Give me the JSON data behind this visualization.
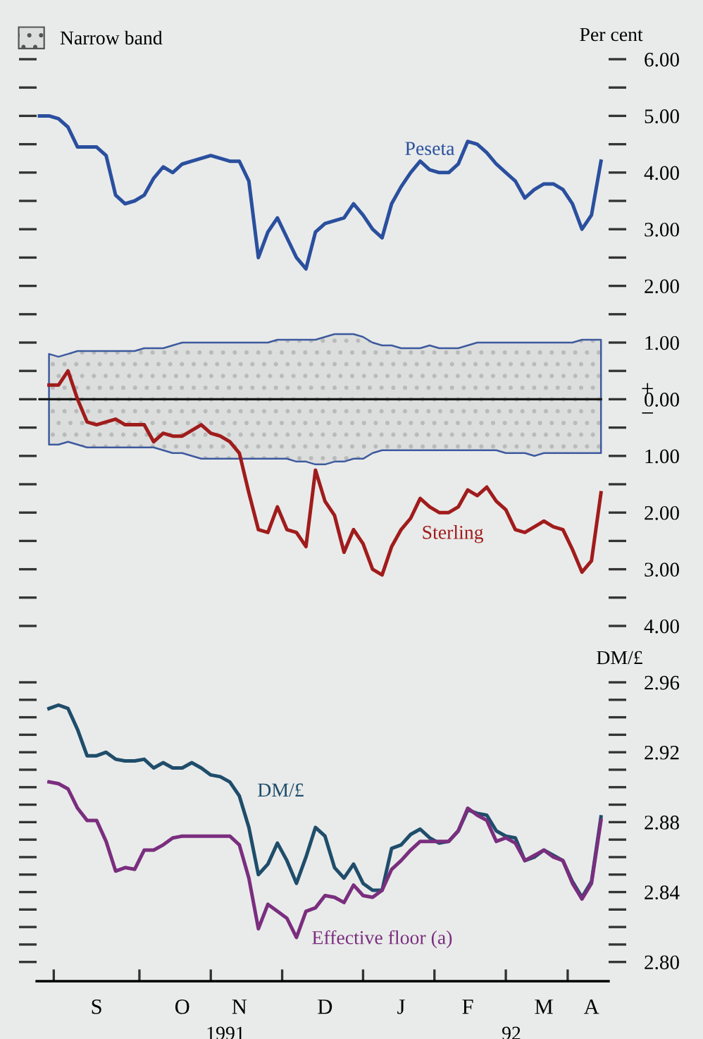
{
  "chart_data": [
    {
      "type": "line",
      "ylabel": "Per cent",
      "legend": "top left",
      "tick_labels": "y",
      "categories": [
        null,
        null,
        null,
        null,
        null,
        null,
        null,
        null,
        null,
        null,
        null,
        null,
        null,
        null,
        null,
        null,
        null,
        null,
        null,
        null,
        null,
        null,
        null,
        null,
        null,
        null,
        null,
        null,
        null,
        null,
        null,
        null,
        null,
        null,
        null,
        null,
        null,
        null,
        null,
        null,
        null,
        null,
        null,
        null,
        null,
        null,
        null,
        null,
        null,
        null,
        null,
        null,
        null,
        null,
        null,
        null,
        null,
        null,
        null,
        null
      ],
      "ylim": [
        -4,
        6
      ],
      "yticks": [
        {
          "value": 6,
          "label": "6.00"
        },
        {
          "value": 5.5,
          "label": null
        },
        {
          "value": 5,
          "label": "5.00"
        },
        {
          "value": 4.5,
          "label": null
        },
        {
          "value": 4,
          "label": "4.00"
        },
        {
          "value": 3.5,
          "label": null
        },
        {
          "value": 3,
          "label": "3.00"
        },
        {
          "value": 2.5,
          "label": null
        },
        {
          "value": 2,
          "label": "2.00"
        },
        {
          "value": 1.5,
          "label": null
        },
        {
          "value": 1,
          "label": "1.00"
        },
        {
          "value": 0.5,
          "label": null
        },
        {
          "value": 0,
          "label": "0.00"
        },
        {
          "value": -0.5,
          "label": null
        },
        {
          "value": -1,
          "label": "1.00"
        },
        {
          "value": -1.5,
          "label": null
        },
        {
          "value": -2,
          "label": "2.00"
        },
        {
          "value": -2.5,
          "label": null
        },
        {
          "value": -3,
          "label": "3.00"
        },
        {
          "value": -3.5,
          "label": null
        },
        {
          "value": -4,
          "label": "4.00"
        }
      ],
      "annotations": [
        "+",
        "−"
      ],
      "series": [
        {
          "name": "Narrow band",
          "color": "#1a1a1a",
          "values": [
            0,
            0,
            0,
            0,
            0,
            0,
            0,
            0,
            0,
            0,
            0,
            0,
            0,
            0,
            0,
            0,
            0,
            0,
            0,
            0,
            0,
            0,
            0,
            0,
            0,
            0,
            0,
            0,
            0,
            0,
            0,
            0,
            0,
            0,
            0,
            0,
            0,
            0,
            0,
            0,
            0,
            0,
            0,
            0,
            0,
            0,
            0,
            0,
            0,
            0,
            0,
            0,
            0,
            0,
            0,
            0,
            0,
            0,
            0,
            0
          ],
          "upper": [
            null,
            0.8,
            0.75,
            0.8,
            0.85,
            0.85,
            0.85,
            0.85,
            0.85,
            0.85,
            0.85,
            0.9,
            0.9,
            0.9,
            0.95,
            1.0,
            1.0,
            1.0,
            1.0,
            1.0,
            1.0,
            1.0,
            1.0,
            1.0,
            1.0,
            1.05,
            1.05,
            1.05,
            1.05,
            1.05,
            1.1,
            1.15,
            1.15,
            1.15,
            1.1,
            1.0,
            0.95,
            0.95,
            0.9,
            0.9,
            0.9,
            0.95,
            0.9,
            0.9,
            0.9,
            0.95,
            1.0,
            1.0,
            1.0,
            1.0,
            1.0,
            1.0,
            1.0,
            1.0,
            1.0,
            1.0,
            1.0,
            1.05,
            1.05,
            1.05
          ],
          "lower": [
            null,
            -0.8,
            -0.8,
            -0.75,
            -0.8,
            -0.85,
            -0.85,
            -0.85,
            -0.85,
            -0.85,
            -0.85,
            -0.85,
            -0.85,
            -0.9,
            -0.95,
            -0.95,
            -1.0,
            -1.05,
            -1.05,
            -1.05,
            -1.05,
            -1.05,
            -1.05,
            -1.05,
            -1.05,
            -1.05,
            -1.05,
            -1.1,
            -1.1,
            -1.15,
            -1.15,
            -1.1,
            -1.1,
            -1.05,
            -1.05,
            -0.95,
            -0.9,
            -0.9,
            -0.9,
            -0.9,
            -0.9,
            -0.9,
            -0.9,
            -0.9,
            -0.9,
            -0.9,
            -0.9,
            -0.9,
            -0.9,
            -0.95,
            -0.95,
            -0.95,
            -1.0,
            -0.95,
            -0.95,
            -0.95,
            -0.95,
            -0.95,
            -0.95,
            -0.95
          ]
        },
        {
          "name": "Peseta",
          "color": "#2a4f9e",
          "values": [
            5.0,
            5.0,
            4.95,
            4.8,
            4.45,
            4.45,
            4.45,
            4.3,
            3.6,
            3.45,
            3.5,
            3.6,
            3.9,
            4.1,
            4.0,
            4.15,
            4.2,
            4.25,
            4.3,
            4.25,
            4.2,
            4.2,
            3.85,
            2.5,
            2.95,
            3.2,
            2.85,
            2.5,
            2.3,
            2.95,
            3.1,
            3.15,
            3.2,
            3.45,
            3.25,
            3.0,
            2.85,
            3.45,
            3.75,
            4.0,
            4.2,
            4.05,
            4.0,
            4.0,
            4.15,
            4.55,
            4.5,
            4.35,
            4.15,
            4.0,
            3.85,
            3.55,
            3.7,
            3.8,
            3.8,
            3.7,
            3.45,
            3.0,
            3.25,
            4.2
          ]
        },
        {
          "name": "Sterling",
          "color": "#a01c1c",
          "values": [
            null,
            0.25,
            0.25,
            0.5,
            0.0,
            -0.4,
            -0.45,
            -0.4,
            -0.35,
            -0.45,
            -0.45,
            -0.45,
            -0.75,
            -0.6,
            -0.65,
            -0.65,
            -0.55,
            -0.45,
            -0.6,
            -0.65,
            -0.75,
            -0.95,
            -1.65,
            -2.3,
            -2.35,
            -1.9,
            -2.3,
            -2.35,
            -2.6,
            -1.25,
            -1.8,
            -2.05,
            -2.7,
            -2.3,
            -2.55,
            -3.0,
            -3.1,
            -2.6,
            -2.3,
            -2.1,
            -1.75,
            -1.9,
            -2.0,
            -2.0,
            -1.9,
            -1.6,
            -1.7,
            -1.55,
            -1.8,
            -1.95,
            -2.3,
            -2.35,
            -2.25,
            -2.15,
            -2.25,
            -2.3,
            -2.65,
            -3.05,
            -2.85,
            -1.65
          ]
        }
      ]
    },
    {
      "type": "line",
      "ylabel": "DM/£",
      "categories": [
        null,
        null,
        null,
        null,
        null,
        null,
        "S",
        null,
        null,
        null,
        null,
        null,
        null,
        null,
        null,
        "O",
        null,
        null,
        null,
        null,
        null,
        "N",
        null,
        null,
        null,
        null,
        null,
        null,
        null,
        null,
        "D",
        null,
        null,
        null,
        null,
        null,
        null,
        null,
        "J",
        null,
        null,
        null,
        null,
        null,
        null,
        "F",
        null,
        null,
        null,
        null,
        null,
        null,
        null,
        "M",
        null,
        null,
        null,
        null,
        "A",
        null
      ],
      "ylim": [
        2.789,
        2.96
      ],
      "yticks": [
        {
          "value": 2.96,
          "label": "2.96"
        },
        {
          "value": 2.95,
          "label": null
        },
        {
          "value": 2.94,
          "label": null
        },
        {
          "value": 2.93,
          "label": null
        },
        {
          "value": 2.92,
          "label": "2.92"
        },
        {
          "value": 2.91,
          "label": null
        },
        {
          "value": 2.9,
          "label": null
        },
        {
          "value": 2.89,
          "label": null
        },
        {
          "value": 2.88,
          "label": "2.88"
        },
        {
          "value": 2.87,
          "label": null
        },
        {
          "value": 2.86,
          "label": null
        },
        {
          "value": 2.85,
          "label": null
        },
        {
          "value": 2.84,
          "label": "2.84"
        },
        {
          "value": 2.83,
          "label": null
        },
        {
          "value": 2.82,
          "label": null
        },
        {
          "value": 2.81,
          "label": null
        },
        {
          "value": 2.8,
          "label": "2.80"
        }
      ],
      "annotations": [
        "1991",
        "92"
      ],
      "series": [
        {
          "name": "DM/£",
          "color": "#1f4d6b",
          "values": [
            null,
            2.945,
            2.947,
            2.945,
            2.933,
            2.918,
            2.918,
            2.92,
            2.916,
            2.915,
            2.915,
            2.916,
            2.911,
            2.914,
            2.911,
            2.911,
            2.914,
            2.911,
            2.907,
            2.906,
            2.903,
            2.895,
            2.877,
            2.85,
            2.856,
            2.868,
            2.858,
            2.845,
            2.86,
            2.877,
            2.872,
            2.854,
            2.848,
            2.856,
            2.845,
            2.841,
            2.841,
            2.865,
            2.867,
            2.873,
            2.876,
            2.871,
            2.868,
            2.869,
            2.875,
            2.887,
            2.885,
            2.884,
            2.875,
            2.872,
            2.871,
            2.858,
            2.86,
            2.864,
            2.861,
            2.858,
            2.846,
            2.837,
            2.846,
            2.883
          ]
        },
        {
          "name": "Effective floor (a)",
          "color": "#7a2e7e",
          "values": [
            null,
            2.903,
            2.902,
            2.899,
            2.888,
            2.881,
            2.881,
            2.869,
            2.852,
            2.854,
            2.853,
            2.864,
            2.864,
            2.867,
            2.871,
            2.872,
            2.872,
            2.872,
            2.872,
            2.872,
            2.872,
            2.867,
            2.848,
            2.819,
            2.833,
            2.829,
            2.825,
            2.814,
            2.829,
            2.831,
            2.838,
            2.837,
            2.834,
            2.844,
            2.838,
            2.837,
            2.841,
            2.853,
            2.858,
            2.864,
            2.869,
            2.869,
            2.869,
            2.869,
            2.875,
            2.888,
            2.884,
            2.881,
            2.869,
            2.871,
            2.868,
            2.858,
            2.861,
            2.864,
            2.86,
            2.858,
            2.845,
            2.836,
            2.845,
            2.881
          ]
        }
      ]
    }
  ]
}
